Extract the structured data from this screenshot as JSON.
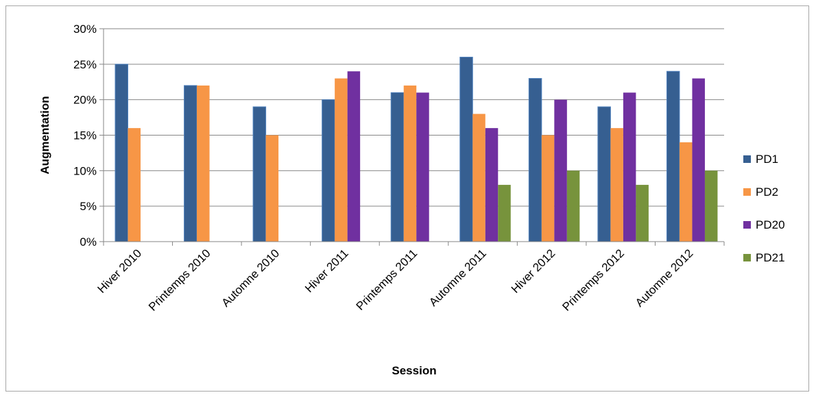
{
  "chart_data": {
    "type": "bar",
    "title": "",
    "xlabel": "Session",
    "ylabel": "Augmentation",
    "ylim": [
      0,
      30
    ],
    "yticks": [
      "0%",
      "5%",
      "10%",
      "15%",
      "20%",
      "25%",
      "30%"
    ],
    "grid": true,
    "legend_position": "right",
    "categories": [
      "Hiver 2010",
      "Printemps 2010",
      "Automne 2010",
      "Hiver 2011",
      "Printemps 2011",
      "Automne 2011",
      "Hiver 2012",
      "Printemps 2012",
      "Automne 2012"
    ],
    "series": [
      {
        "name": "PD1",
        "color": "#365f91",
        "values": [
          25,
          22,
          19,
          20,
          21,
          26,
          23,
          19,
          24
        ]
      },
      {
        "name": "PD2",
        "color": "#f79646",
        "values": [
          16,
          22,
          15,
          23,
          22,
          18,
          15,
          16,
          14
        ]
      },
      {
        "name": "PD20",
        "color": "#7030a0",
        "values": [
          null,
          null,
          null,
          24,
          21,
          16,
          20,
          21,
          23
        ]
      },
      {
        "name": "PD21",
        "color": "#77933c",
        "values": [
          null,
          null,
          null,
          null,
          null,
          8,
          10,
          8,
          10
        ]
      }
    ]
  }
}
